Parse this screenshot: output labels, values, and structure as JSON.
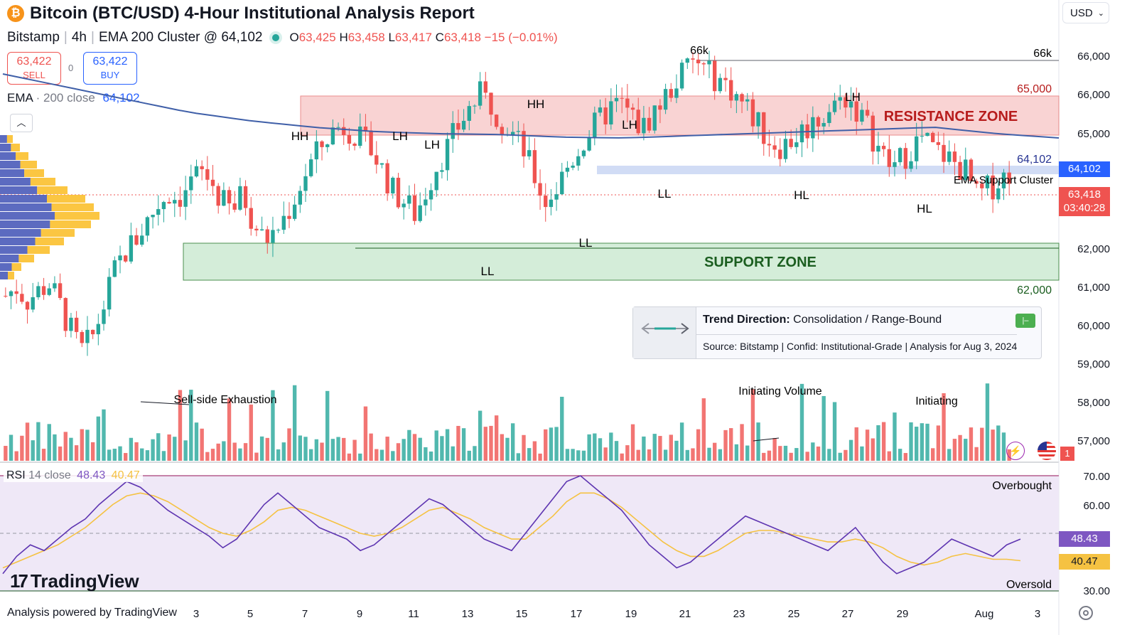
{
  "header": {
    "title": "Bitcoin (BTC/USD)  4-Hour Institutional Analysis Report",
    "exchange": "Bitstamp",
    "interval": "4h",
    "indicator_label": "EMA 200 Cluster @ 64,102",
    "ohlc": {
      "o": "63,425",
      "h": "63,458",
      "l": "63,417",
      "c": "63,418",
      "change": "−15 (−0.01%)"
    }
  },
  "trade": {
    "sell_price": "63,422",
    "sell_label": "SELL",
    "spread": "0",
    "buy_price": "63,422",
    "buy_label": "BUY"
  },
  "ema_legend": {
    "name": "EMA",
    "params": "· 200 close",
    "value": "64,102"
  },
  "currency": "USD",
  "colors": {
    "up": "#26a69a",
    "down": "#ef5350",
    "ema": "#3f5fa8",
    "rsi": "#7e57c2",
    "rsi_ma": "#f5c242",
    "resistance": "#f4a5a5",
    "support": "#9ed8a8"
  },
  "price_axis": {
    "labels": [
      "66,000",
      "66,000",
      "65,000",
      "62,000",
      "61,000",
      "60,000",
      "59,000",
      "58,000",
      "57,000"
    ],
    "tags": {
      "ema": "64,102",
      "last": "63,418",
      "countdown": "03:40:28"
    }
  },
  "rsi_axis": {
    "labels": [
      "70.00",
      "60.00",
      "30.00"
    ],
    "tags": {
      "rsi": "48.43",
      "ma": "40.47"
    }
  },
  "rsi_legend": {
    "name": "RSI",
    "params": "14 close",
    "rsi": "48.43",
    "ma": "40.47"
  },
  "rsi_notes": {
    "overbought": "Overbought",
    "oversold": "Oversold"
  },
  "annotations": {
    "top_level": "66k",
    "top_level_right": "66k",
    "res_price": "65,000",
    "res_label": "RESISTANCE ZONE",
    "sup_label": "SUPPORT ZONE",
    "sup_price": "62,000",
    "ema_price": "64,102",
    "ema_cluster": "EMA Support Cluster",
    "sell_side": "Sell-side Exhaustion",
    "init_vol": "Initiating Volume",
    "init": "Initiating",
    "hh": "HH",
    "lh": "LH",
    "ll": "LL",
    "hl": "HL"
  },
  "trend": {
    "title": "Trend Direction:",
    "value": "Consolidation / Range-Bound",
    "source": "Source: Bitstamp | Confid: Institutional-Grade | Analysis for Aug 3, 2024"
  },
  "x_axis": {
    "labels": [
      "3",
      "5",
      "7",
      "9",
      "11",
      "13",
      "15",
      "17",
      "19",
      "21",
      "23",
      "25",
      "27",
      "29",
      "Aug",
      "3"
    ]
  },
  "branding": {
    "logo": "TradingView",
    "footer": "Analysis powered by TradingView"
  },
  "notification_count": "1",
  "chart_data": {
    "type": "candlestick",
    "symbol": "BTC/USD",
    "interval": "4h",
    "close_path": [
      60400,
      60600,
      60300,
      60500,
      60700,
      60200,
      59600,
      59100,
      59400,
      60100,
      60900,
      61400,
      61700,
      62100,
      62500,
      62800,
      62700,
      63000,
      63300,
      63100,
      62600,
      62400,
      62800,
      62100,
      61700,
      61900,
      62300,
      62800,
      63400,
      63800,
      64200,
      64400,
      64300,
      64000,
      63800,
      63300,
      62800,
      62600,
      62300,
      62900,
      63500,
      63900,
      64400,
      64800,
      65100,
      64900,
      64500,
      64200,
      63800,
      63200,
      62600,
      62900,
      63400,
      63800,
      64200,
      64500,
      64800,
      64900,
      64600,
      64300,
      64700,
      65000,
      65400,
      65700,
      65900,
      65600,
      65500,
      65300,
      65000,
      64700,
      64300,
      64000,
      63900,
      64100,
      64300,
      64500,
      64700,
      64900,
      65100,
      64700,
      64300,
      63800,
      63400,
      63600,
      63900,
      64100,
      63800,
      63700,
      63500,
      63300,
      62700,
      62900,
      63100,
      63300
    ],
    "ema200_path": [
      65600,
      65300,
      65000,
      64700,
      64500,
      64350,
      64250,
      64200,
      64180,
      64120,
      64100,
      64150,
      64200,
      64250,
      64300,
      64350,
      64200,
      64100
    ],
    "volume_relative": "bars vary; spikes near Jul 6-7, Jul 24-25, Jul 30-31",
    "resistance_zone": [
      65000,
      66000
    ],
    "support_zone": [
      61200,
      62100
    ],
    "ema200_value": 64102,
    "last_price": 63418,
    "rsi": {
      "period": 14,
      "value": 48.43,
      "ma": 40.47,
      "ylim": [
        30,
        70
      ],
      "path": [
        36,
        42,
        46,
        44,
        48,
        52,
        55,
        60,
        64,
        68,
        66,
        62,
        58,
        55,
        52,
        49,
        45,
        48,
        54,
        60,
        64,
        60,
        56,
        52,
        50,
        48,
        44,
        46,
        50,
        54,
        58,
        62,
        60,
        56,
        52,
        48,
        46,
        44,
        50,
        56,
        62,
        68,
        70,
        66,
        62,
        58,
        52,
        46,
        42,
        38,
        40,
        44,
        48,
        52,
        56,
        54,
        52,
        50,
        48,
        46,
        44,
        48,
        52,
        46,
        40,
        36,
        38,
        40,
        44,
        48,
        46,
        44,
        42,
        46,
        48
      ],
      "ma_path": [
        38,
        40,
        42,
        44,
        46,
        49,
        52,
        56,
        60,
        63,
        64,
        63,
        61,
        58,
        55,
        52,
        50,
        49,
        51,
        54,
        58,
        59,
        58,
        56,
        54,
        52,
        50,
        49,
        50,
        52,
        55,
        58,
        59,
        57,
        55,
        52,
        50,
        48,
        48,
        52,
        56,
        61,
        64,
        64,
        62,
        59,
        55,
        51,
        47,
        44,
        42,
        42,
        44,
        47,
        50,
        51,
        51,
        50,
        49,
        48,
        47,
        47,
        48,
        47,
        45,
        42,
        40,
        39,
        40,
        42,
        43,
        42,
        41,
        41,
        40.5
      ]
    }
  }
}
